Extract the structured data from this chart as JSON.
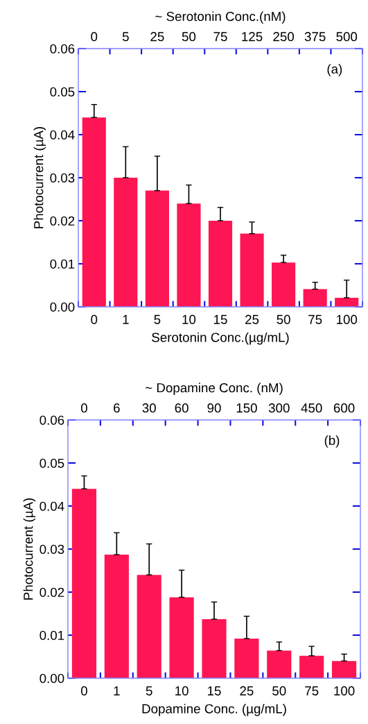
{
  "chart_data": [
    {
      "type": "bar",
      "categories": [
        "0",
        "1",
        "5",
        "10",
        "15",
        "25",
        "50",
        "75",
        "100"
      ],
      "xlabel": "Serotonin Conc.(µg/mL)",
      "ylabel": "Photocurrent (µA)",
      "x2label": "~ Serotonin Conc.(nM)",
      "ylim": [
        0,
        0.06
      ],
      "yticks": [
        {
          "value": 0,
          "label": "0.00"
        },
        0.01,
        0.02,
        0.03,
        0.04,
        0.05,
        0.06
      ],
      "color": "#fe1654",
      "values": [
        0.044,
        0.03,
        0.027,
        0.024,
        0.02,
        0.017,
        0.0103,
        0.0041,
        0.0021
      ],
      "errors": [
        [
          0.044,
          0.047
        ],
        [
          0.03,
          0.0372
        ],
        [
          0.027,
          0.035
        ],
        [
          0.024,
          0.0283
        ],
        [
          0.02,
          0.0231
        ],
        [
          0.017,
          0.0197
        ],
        [
          0.0103,
          0.012
        ],
        [
          0.0041,
          0.0057
        ],
        [
          0.0021,
          0.0062
        ]
      ],
      "annotations": [
        "(a)",
        "0",
        "5",
        "25",
        "50",
        "75",
        "125",
        "250",
        "375",
        "500"
      ],
      "grid": false,
      "legend": false
    },
    {
      "type": "bar",
      "categories": [
        "0",
        "1",
        "5",
        "10",
        "15",
        "25",
        "50",
        "75",
        "100"
      ],
      "xlabel": "Dopamine Conc. (µg/mL)",
      "ylabel": "Photocurrent (µA)",
      "x2label": "~ Dopamine Conc. (nM)",
      "ylim": [
        0,
        0.06
      ],
      "yticks": [
        {
          "value": 0,
          "label": "0.00"
        },
        0.01,
        0.02,
        0.03,
        0.04,
        0.05,
        0.06
      ],
      "color": "#fe1654",
      "values": [
        0.044,
        0.0287,
        0.024,
        0.0188,
        0.0137,
        0.0092,
        0.0064,
        0.0052,
        0.004
      ],
      "errors": [
        [
          0.044,
          0.047
        ],
        [
          0.0287,
          0.0338
        ],
        [
          0.024,
          0.0312
        ],
        [
          0.0188,
          0.0251
        ],
        [
          0.0137,
          0.0177
        ],
        [
          0.0092,
          0.0144
        ],
        [
          0.0064,
          0.0084
        ],
        [
          0.0052,
          0.0074
        ],
        [
          0.004,
          0.0056
        ]
      ],
      "annotations": [
        "(b)",
        "0",
        "6",
        "30",
        "60",
        "90",
        "150",
        "300",
        "450",
        "600"
      ],
      "grid": false,
      "legend": false
    }
  ]
}
